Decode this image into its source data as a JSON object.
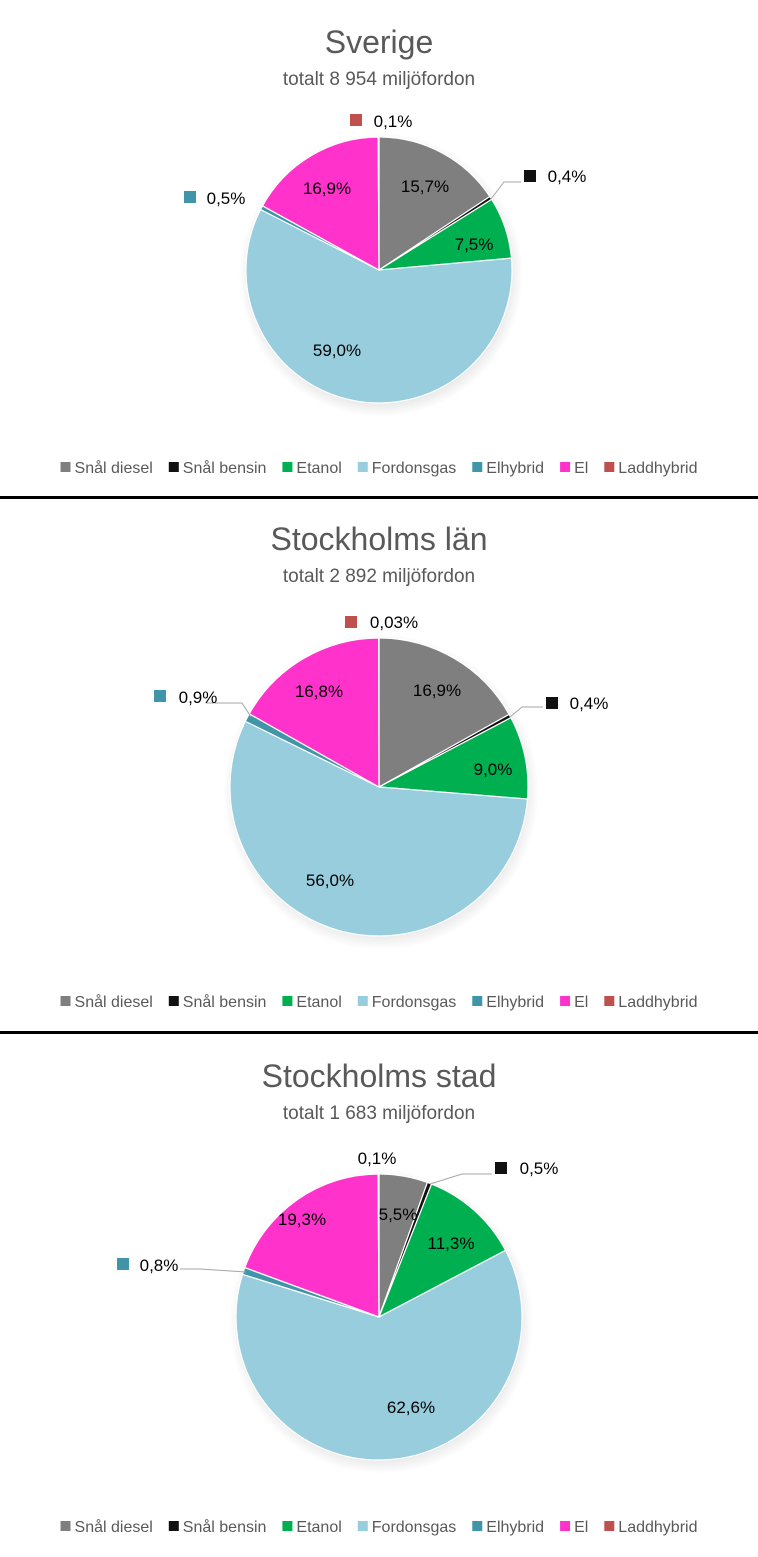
{
  "colors": {
    "Snål diesel": "#7f7f7f",
    "Snål bensin": "#111111",
    "Etanol": "#00b050",
    "Fordonsgas": "#97cddd",
    "Elhybrid": "#4195a8",
    "El": "#ff33cc",
    "Laddhybrid": "#c0504d"
  },
  "chart_data": [
    {
      "type": "pie",
      "title": "Sverige",
      "subtitle": "totalt 8 954 miljöfordon",
      "legend": "bottom",
      "categories": [
        "Snål diesel",
        "Snål bensin",
        "Etanol",
        "Fordonsgas",
        "Elhybrid",
        "El",
        "Laddhybrid"
      ],
      "values": [
        15.7,
        0.4,
        7.5,
        59.0,
        0.5,
        16.9,
        0.1
      ],
      "labels": [
        "15,7%",
        "0,4%",
        "7,5%",
        "59,0%",
        "0,5%",
        "16,9%",
        "0,1%"
      ]
    },
    {
      "type": "pie",
      "title": "Stockholms län",
      "subtitle": "totalt 2 892 miljöfordon",
      "legend": "bottom",
      "categories": [
        "Snål diesel",
        "Snål bensin",
        "Etanol",
        "Fordonsgas",
        "Elhybrid",
        "El",
        "Laddhybrid"
      ],
      "values": [
        16.9,
        0.4,
        9.0,
        56.0,
        0.9,
        16.8,
        0.03
      ],
      "labels": [
        "16,9%",
        "0,4%",
        "9,0%",
        "56,0%",
        "0,9%",
        "16,8%",
        "0,03%"
      ]
    },
    {
      "type": "pie",
      "title": "Stockholms stad",
      "subtitle": "totalt 1 683 miljöfordon",
      "legend": "bottom",
      "categories": [
        "Snål diesel",
        "Snål bensin",
        "Etanol",
        "Fordonsgas",
        "Elhybrid",
        "El",
        "Laddhybrid"
      ],
      "values": [
        5.5,
        0.5,
        11.3,
        62.6,
        0.8,
        19.3,
        0.1
      ],
      "labels": [
        "5,5%",
        "0,5%",
        "11,3%",
        "62,6%",
        "0,8%",
        "19,3%",
        "0,1%"
      ]
    }
  ]
}
